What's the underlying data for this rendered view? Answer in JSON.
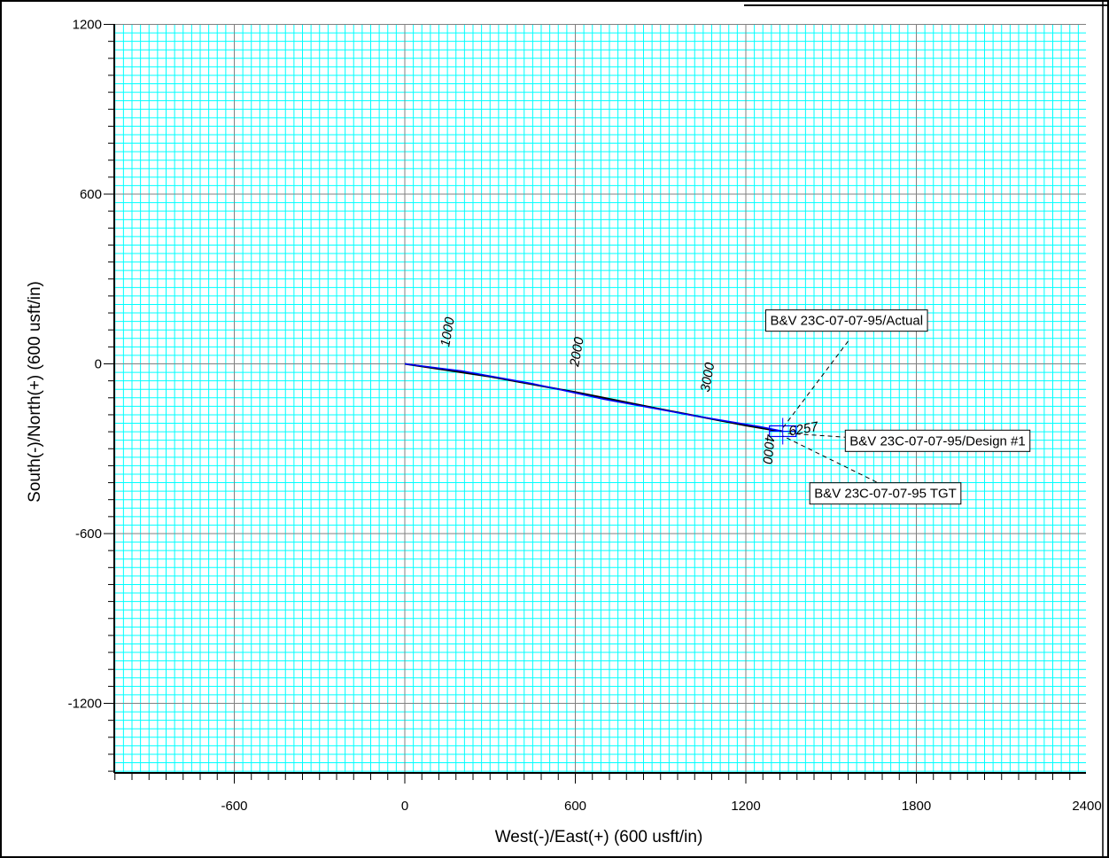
{
  "chart_data": {
    "type": "line",
    "xlabel": "West(-)/East(+) (600 usft/in)",
    "ylabel": "South(-)/North(+) (600 usft/in)",
    "xlim": [
      -1030,
      2400
    ],
    "ylim": [
      -1450,
      1200
    ],
    "x_ticks": [
      -600,
      0,
      600,
      1200,
      1800,
      2400
    ],
    "y_ticks": [
      1200,
      600,
      0,
      -600,
      -1200
    ],
    "grid": true,
    "grid_color": "#00ffff",
    "major_grid_color": "#808080",
    "series": [
      {
        "name": "B&V 23C-07-07-95/Actual",
        "color": "#000000",
        "x": [
          0,
          300,
          600,
          900,
          1200,
          1300,
          1330
        ],
        "y": [
          0,
          -45,
          -100,
          -160,
          -218,
          -235,
          -238
        ]
      },
      {
        "name": "B&V 23C-07-07-95/Design #1",
        "color": "#0000ff",
        "x": [
          0,
          200,
          450,
          700,
          1000,
          1250,
          1330
        ],
        "y": [
          0,
          -25,
          -70,
          -125,
          -180,
          -222,
          -238
        ]
      }
    ],
    "md_labels": [
      {
        "text": "1000",
        "x": 165,
        "y": 110
      },
      {
        "text": "2000",
        "x": 620,
        "y": 40
      },
      {
        "text": "3000",
        "x": 1080,
        "y": -50
      },
      {
        "text": "4000",
        "x": 1265,
        "y": -300
      },
      {
        "text": "6257",
        "x": 1405,
        "y": -245
      }
    ],
    "target": {
      "x": 1330,
      "y": -238
    },
    "annotations": [
      {
        "text": "B&V 23C-07-07-95/Actual",
        "box_x": 1270,
        "box_y": 153,
        "tip_x": 1320,
        "tip_y": -240,
        "anchor": [
          1560,
          80
        ]
      },
      {
        "text": "B&V 23C-07-07-95/Design #1",
        "box_x": 1550,
        "box_y": -272,
        "tip_x": 1340,
        "tip_y": -245,
        "anchor": [
          1560,
          -260
        ]
      },
      {
        "text": "B&V 23C-07-07-95 TGT",
        "box_x": 1425,
        "box_y": -458,
        "tip_x": 1330,
        "tip_y": -255,
        "anchor": [
          1660,
          -418
        ]
      }
    ]
  }
}
